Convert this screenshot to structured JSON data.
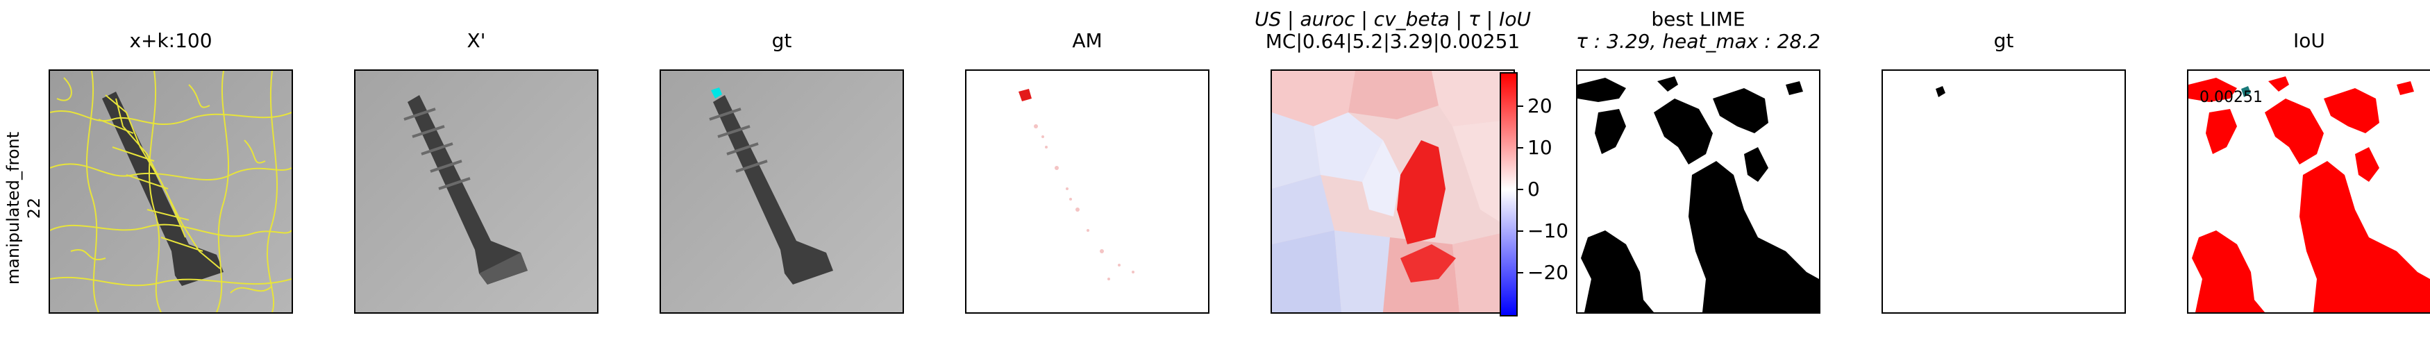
{
  "row_label": {
    "line1": "manipulated_front",
    "line2": "22"
  },
  "panels": [
    {
      "title": "x+k:100"
    },
    {
      "title": "X'"
    },
    {
      "title": "gt"
    },
    {
      "title": "AM"
    },
    {
      "title_line1": "US | auroc | cv_beta | τ | IoU",
      "title_line2": "MC|0.64|5.2|3.29|0.00251"
    },
    {
      "title_line1": "best LIME",
      "title_line2": "τ : 3.29, heat_max : 28.2"
    },
    {
      "title": "gt"
    },
    {
      "title": "IoU"
    }
  ],
  "colorbar": {
    "ticks": [
      "20",
      "10",
      "0",
      "−10",
      "−20"
    ],
    "colors": {
      "high": "#ff0000",
      "mid": "#ffffff",
      "low": "#0000ff"
    }
  },
  "iou_overlay_text": "0.00251",
  "colors": {
    "segment_boundaries": "#e8e43a",
    "gt_marker": "#00e5e5",
    "mask_red": "#ff0000"
  }
}
